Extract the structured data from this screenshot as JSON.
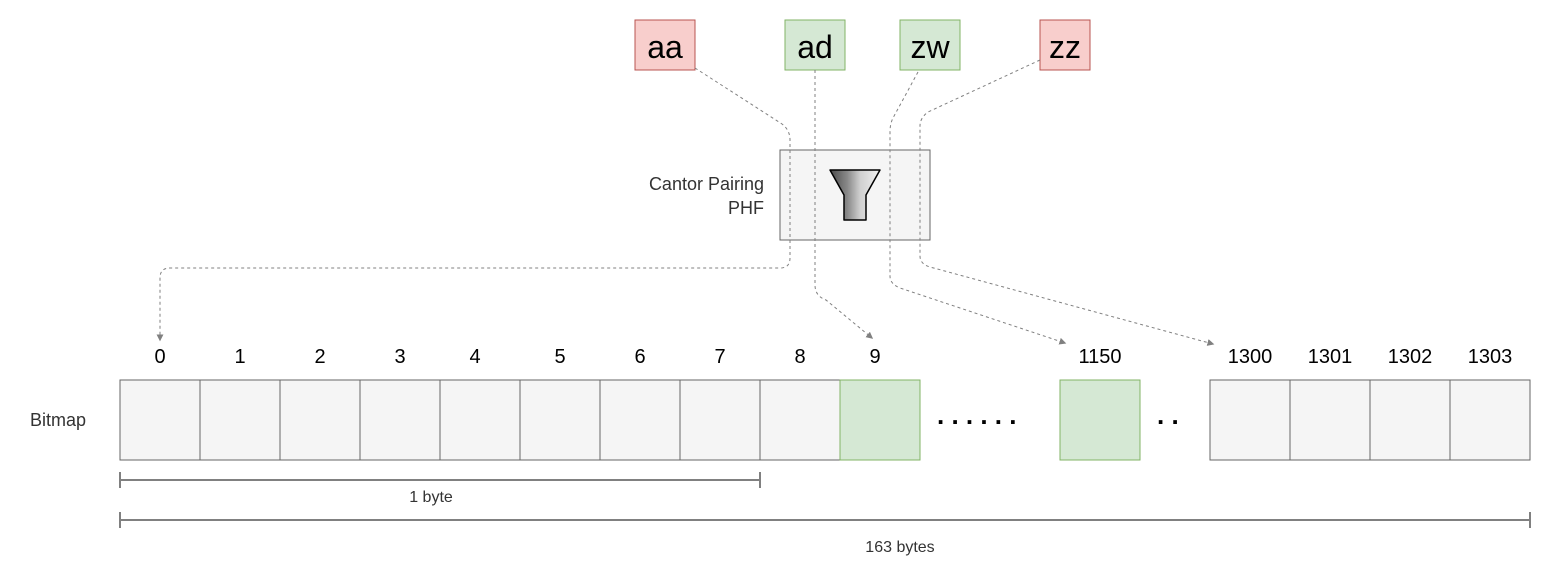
{
  "keys": [
    {
      "label": "aa",
      "status": "miss"
    },
    {
      "label": "ad",
      "status": "hit"
    },
    {
      "label": "zw",
      "status": "hit"
    },
    {
      "label": "zz",
      "status": "miss"
    }
  ],
  "colors": {
    "miss_fill": "#f8cecc",
    "miss_stroke": "#b85450",
    "hit_fill": "#d5e8d4",
    "hit_stroke": "#82b366",
    "cell_fill": "#f5f5f5",
    "cell_stroke": "#666666",
    "arrow": "#808080"
  },
  "phf": {
    "label_line1": "Cantor Pairing",
    "label_line2": "PHF",
    "icon": "funnel-icon"
  },
  "bitmap": {
    "label": "Bitmap",
    "cells": [
      {
        "index": "0",
        "set": false
      },
      {
        "index": "1",
        "set": false
      },
      {
        "index": "2",
        "set": false
      },
      {
        "index": "3",
        "set": false
      },
      {
        "index": "4",
        "set": false
      },
      {
        "index": "5",
        "set": false
      },
      {
        "index": "6",
        "set": false
      },
      {
        "index": "7",
        "set": false
      },
      {
        "index": "8",
        "set": false
      },
      {
        "index": "9",
        "set": true
      },
      {
        "index": "1150",
        "set": true
      },
      {
        "index": "1300",
        "set": false
      },
      {
        "index": "1301",
        "set": false
      },
      {
        "index": "1302",
        "set": false
      },
      {
        "index": "1303",
        "set": false
      }
    ],
    "ellipsis_long": ". . . . . .",
    "ellipsis_short": ". ."
  },
  "measures": {
    "one_byte": "1 byte",
    "total": "163 bytes"
  }
}
